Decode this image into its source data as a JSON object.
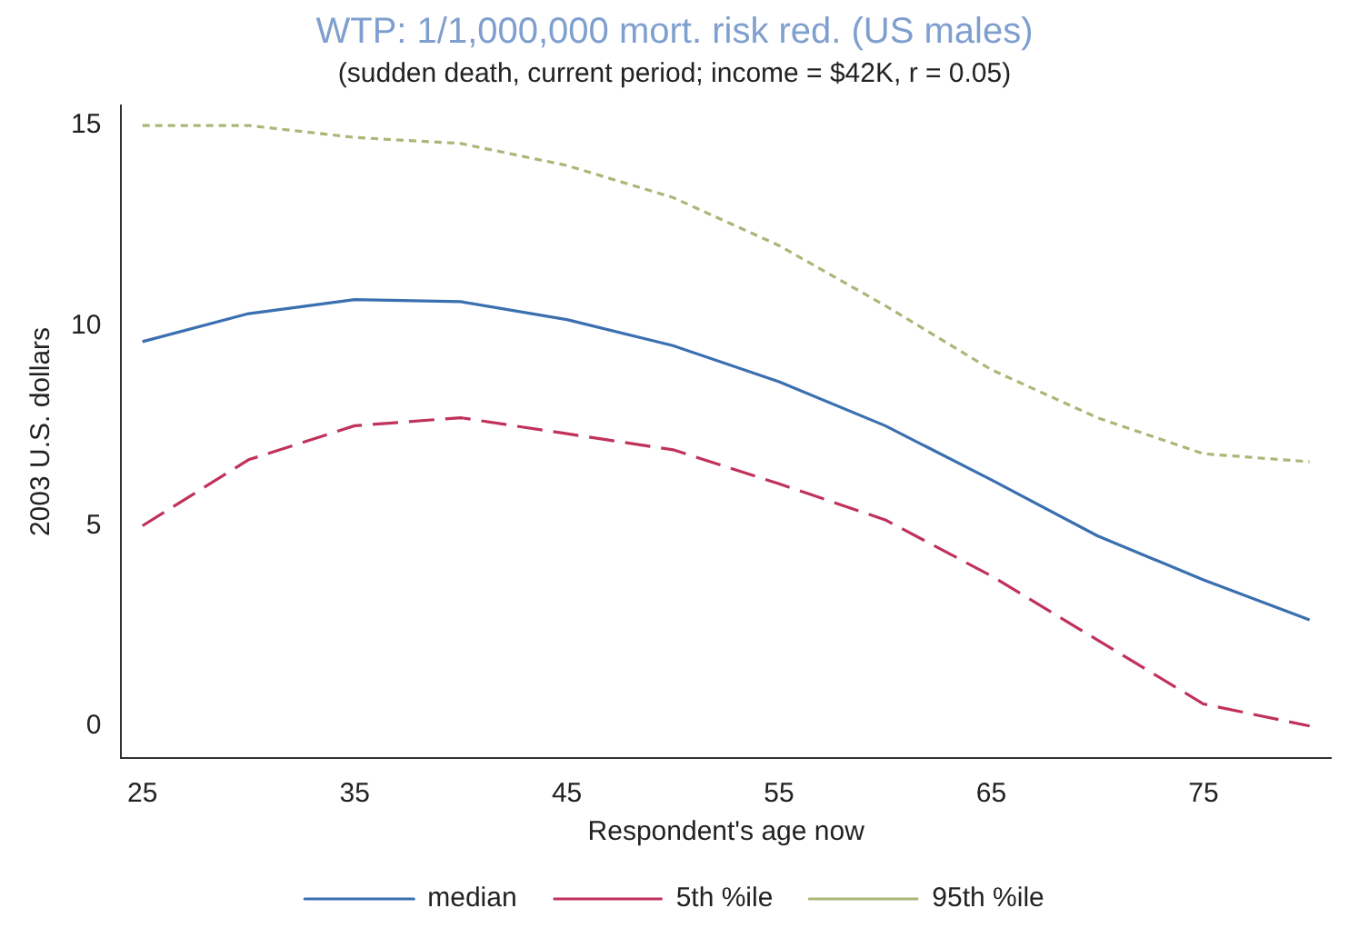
{
  "chart_data": {
    "type": "line",
    "title": "WTP: 1/1,000,000 mort. risk red. (US males)",
    "subtitle": "(sudden death, current period; income = $42K, r = 0.05)",
    "xlabel": "Respondent's age now",
    "ylabel": "2003 U.S. dollars",
    "x": [
      25,
      30,
      35,
      40,
      45,
      50,
      55,
      60,
      65,
      70,
      75,
      80
    ],
    "series": [
      {
        "name": "median",
        "color": "#3a6fb0",
        "line_style": "solid",
        "values": [
          9.6,
          10.3,
          10.65,
          10.6,
          10.15,
          9.5,
          8.6,
          7.5,
          6.15,
          4.75,
          3.65,
          2.65
        ]
      },
      {
        "name": "5th %ile",
        "color": "#c0325a",
        "line_style": "dashed",
        "values": [
          5.0,
          6.65,
          7.5,
          7.7,
          7.3,
          6.9,
          6.05,
          5.15,
          3.75,
          2.15,
          0.55,
          0
        ]
      },
      {
        "name": "95th %ile",
        "color": "#a8b878",
        "line_style": "dotted",
        "values": [
          15.0,
          15.0,
          14.7,
          14.55,
          14.0,
          13.2,
          12.0,
          10.5,
          8.9,
          7.7,
          6.8,
          6.6
        ]
      }
    ],
    "xlim": [
      24,
      81
    ],
    "xticks": [
      25,
      35,
      45,
      55,
      65,
      75
    ],
    "ylim": [
      -0.8,
      15.5
    ],
    "yticks": [
      0,
      5,
      10,
      15
    ],
    "grid": false,
    "legend": "bottom",
    "marker": "none"
  }
}
